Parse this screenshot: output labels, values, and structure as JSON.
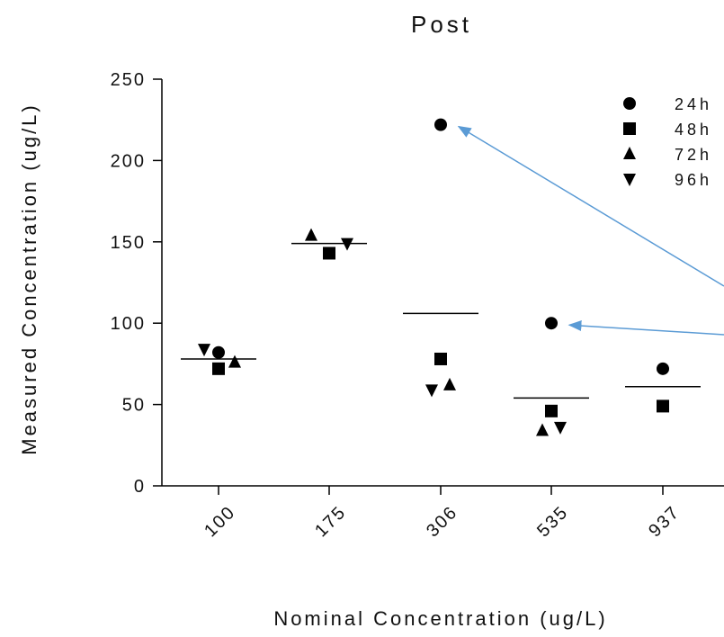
{
  "chart_data": {
    "type": "scatter",
    "title": "Post",
    "xlabel": "Nominal Concentration (ug/L)",
    "ylabel": "Measured Concentration (ug/L)",
    "categories": [
      "100",
      "175",
      "306",
      "535",
      "937"
    ],
    "ylim": [
      0,
      250
    ],
    "yticks": [
      0,
      50,
      100,
      150,
      200,
      250
    ],
    "legend_position": "top-right",
    "grid": false,
    "marker_color": "#000000",
    "annotation_color": "#5b9bd5",
    "series": [
      {
        "name": "24h",
        "marker": "circle",
        "values": [
          82,
          null,
          222,
          100,
          72
        ]
      },
      {
        "name": "48h",
        "marker": "square",
        "values": [
          72,
          143,
          78,
          46,
          49
        ]
      },
      {
        "name": "72h",
        "marker": "triangle-up",
        "values": [
          76,
          154,
          62,
          34,
          null
        ]
      },
      {
        "name": "96h",
        "marker": "triangle-down",
        "values": [
          84,
          149,
          59,
          36,
          null
        ]
      }
    ],
    "means": [
      78,
      149,
      106,
      54,
      61
    ],
    "annotations": [
      {
        "type": "arrow",
        "target_category": "306",
        "target_value": 222
      },
      {
        "type": "arrow",
        "target_category": "535",
        "target_value": 100
      }
    ]
  }
}
